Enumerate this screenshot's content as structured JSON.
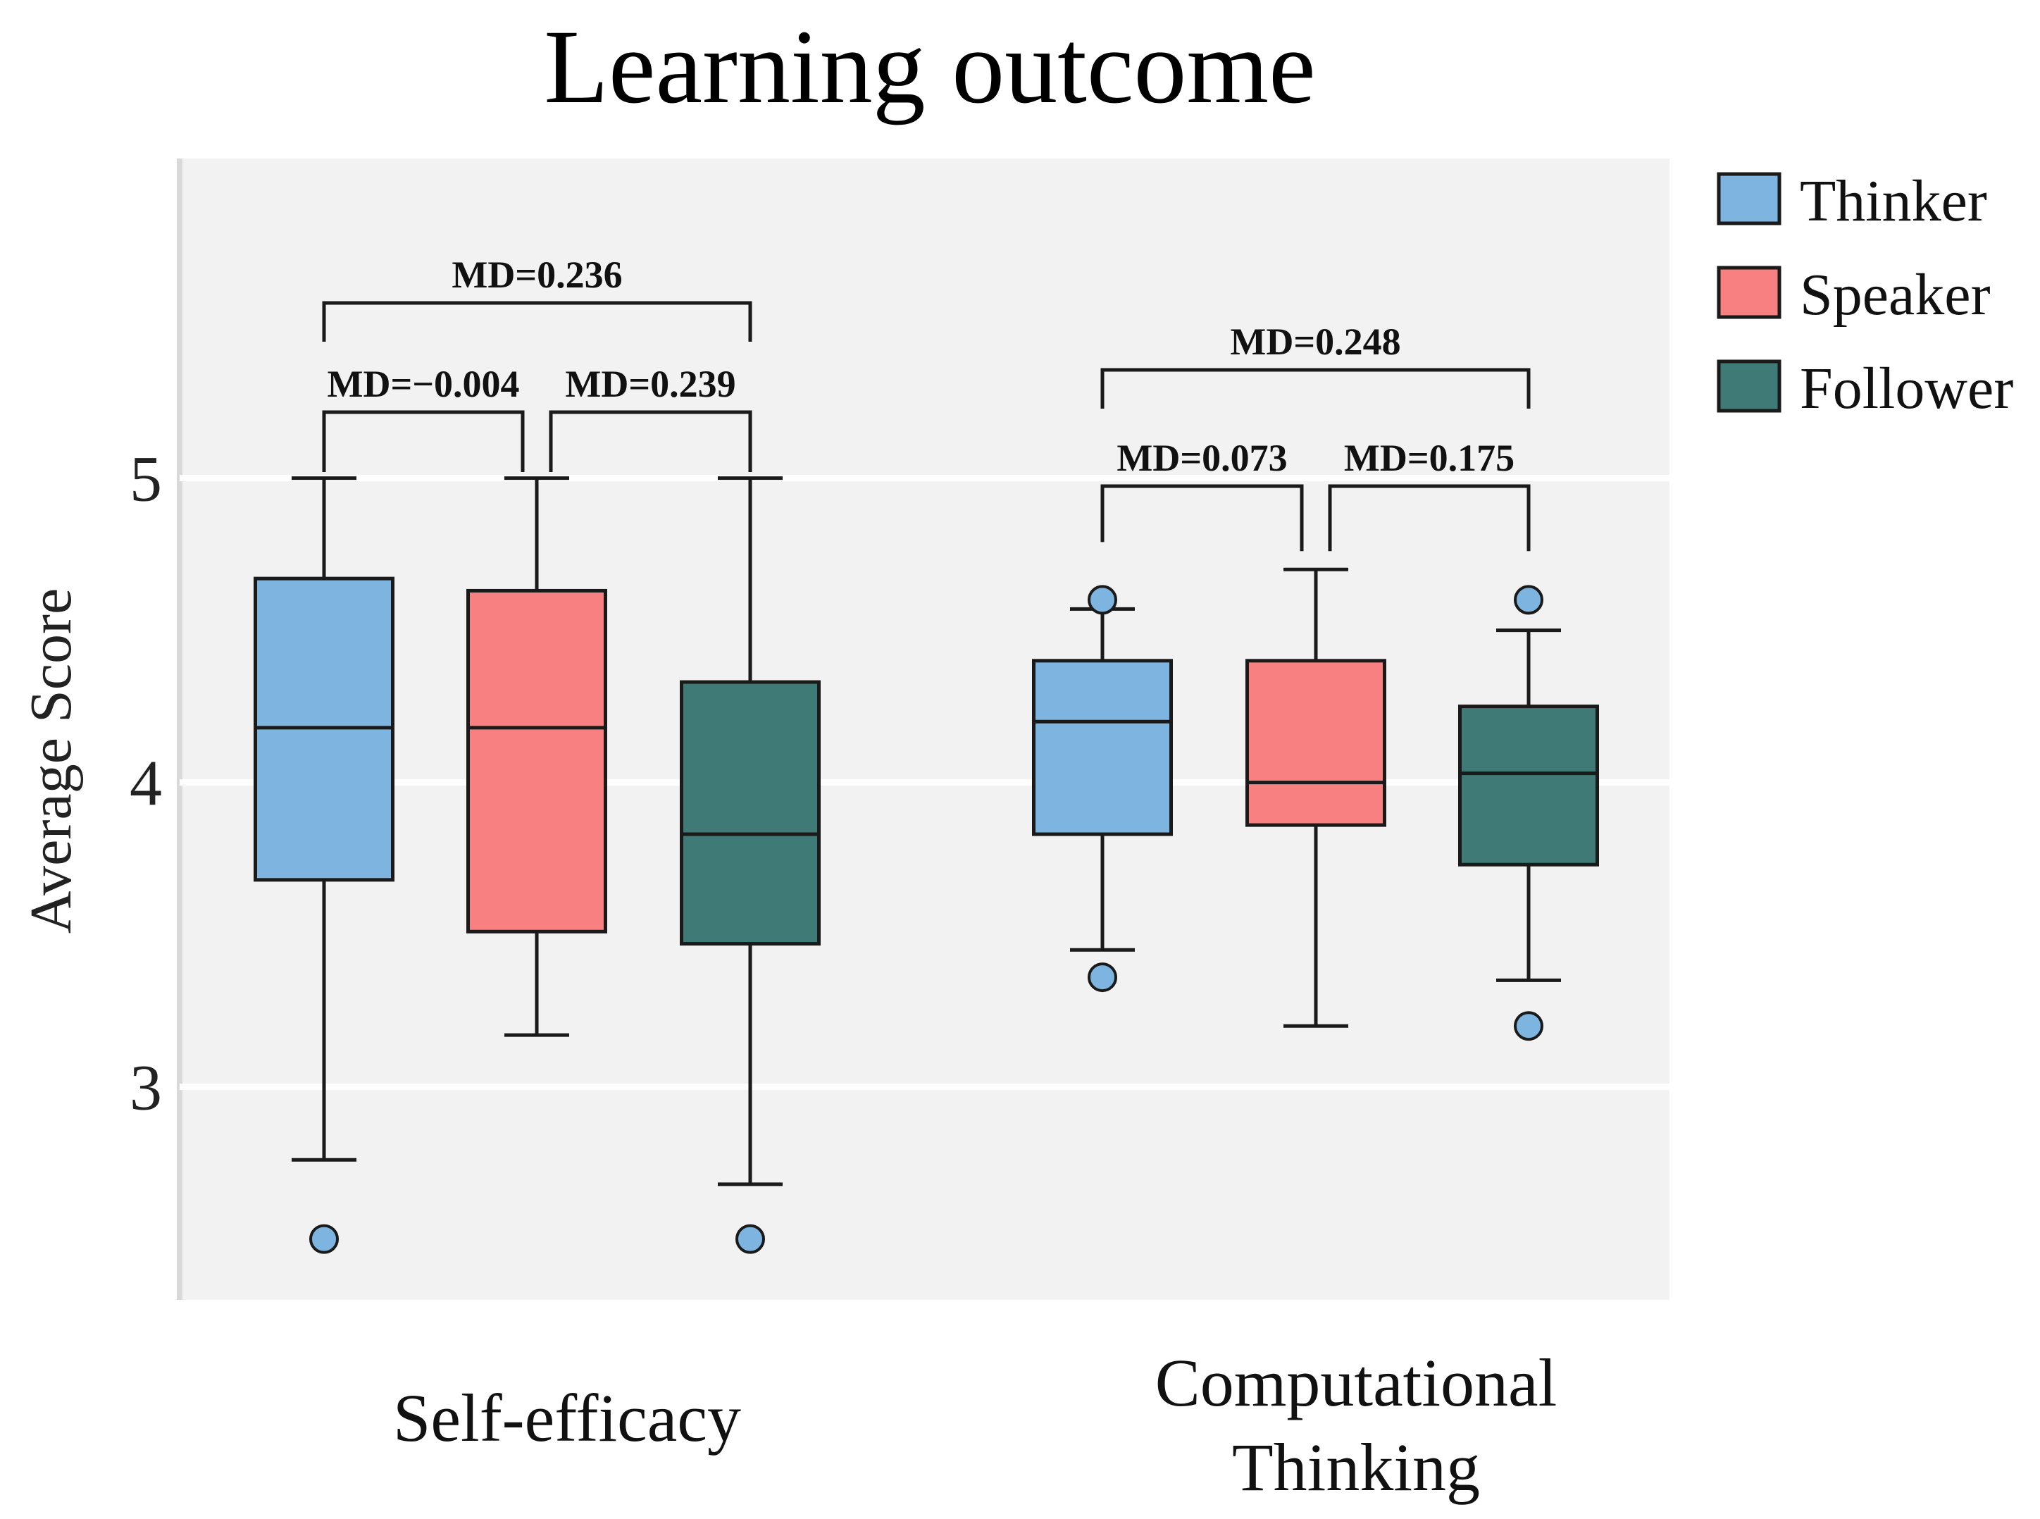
{
  "chart_data": {
    "type": "box",
    "title": "Learning outcome",
    "ylabel": "Average Score",
    "xlabel": "",
    "ylim": [
      2.3,
      6.05
    ],
    "yticks": [
      3,
      4,
      5
    ],
    "grid": true,
    "legend_position": "top-right, outside",
    "categories": [
      {
        "id": "self-efficacy",
        "lines": [
          "Self-efficacy"
        ]
      },
      {
        "id": "computational-thinking",
        "lines": [
          "Computational",
          "Thinking"
        ]
      }
    ],
    "series": [
      {
        "name": "Thinker",
        "color": "#7db4e0",
        "boxes": [
          {
            "whisker_low": 2.76,
            "q1": 3.68,
            "median": 4.18,
            "q3": 4.67,
            "whisker_high": 5.0,
            "outliers": [
              2.5
            ]
          },
          {
            "whisker_low": 3.45,
            "q1": 3.83,
            "median": 4.2,
            "q3": 4.4,
            "whisker_high": 4.57,
            "outliers": [
              3.36,
              4.6
            ]
          }
        ]
      },
      {
        "name": "Speaker",
        "color": "#f98080",
        "boxes": [
          {
            "whisker_low": 3.17,
            "q1": 3.51,
            "median": 4.18,
            "q3": 4.63,
            "whisker_high": 5.0,
            "outliers": []
          },
          {
            "whisker_low": 3.2,
            "q1": 3.86,
            "median": 4.0,
            "q3": 4.4,
            "whisker_high": 4.7,
            "outliers": []
          }
        ]
      },
      {
        "name": "Follower",
        "color": "#3f7a76",
        "boxes": [
          {
            "whisker_low": 2.68,
            "q1": 3.47,
            "median": 3.83,
            "q3": 4.33,
            "whisker_high": 5.0,
            "outliers": [
              2.5
            ]
          },
          {
            "whisker_low": 3.35,
            "q1": 3.73,
            "median": 4.03,
            "q3": 4.25,
            "whisker_high": 4.5,
            "outliers": [
              3.2,
              4.6
            ]
          }
        ]
      }
    ],
    "annotations": [
      {
        "category": 0,
        "from": 0,
        "to": 2,
        "label": "MD=0.236"
      },
      {
        "category": 0,
        "from": 0,
        "to": 1,
        "label": "MD=−0.004"
      },
      {
        "category": 0,
        "from": 1,
        "to": 2,
        "label": "MD=0.239"
      },
      {
        "category": 1,
        "from": 0,
        "to": 2,
        "label": "MD=0.248"
      },
      {
        "category": 1,
        "from": 0,
        "to": 1,
        "label": "MD=0.073"
      },
      {
        "category": 1,
        "from": 1,
        "to": 2,
        "label": "MD=0.175"
      }
    ]
  }
}
